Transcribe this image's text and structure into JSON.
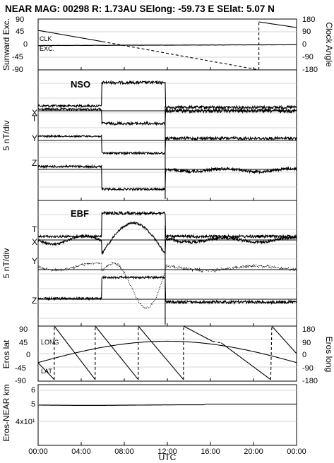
{
  "header": {
    "title": "NEAR MAG: 00298  R: 1.73AU  SElong:  -59.73 E  SElat:     5.07 N"
  },
  "chart_data": [
    {
      "type": "line",
      "panel": "sunward",
      "ylabel": "Sunward Exc.",
      "ylabel_right": "Clock Angle",
      "yticks": [
        "90",
        "45",
        "0",
        "-45",
        "-90"
      ],
      "yticks_right": [
        "180",
        "90",
        "0",
        "-90",
        "-180"
      ],
      "ylim": [
        -90,
        90
      ],
      "ylim_right": [
        -180,
        180
      ],
      "series": [
        {
          "name": "CLK",
          "axis": "right",
          "segments": [
            {
              "x": [
                0,
                12.6
              ],
              "y": [
                100,
                -180
              ],
              "style": "solid"
            },
            {
              "x": [
                12.6,
                20.5
              ],
              "y": [
                -180,
                -180
              ],
              "style": "none"
            },
            {
              "x": [
                0,
                6.0,
                8.8,
                15.5,
                16.2,
                20.5
              ],
              "y": [
                100,
                20,
                -12,
                -110,
                -125,
                -180
              ],
              "style": "mixed"
            },
            {
              "x": [
                20.5,
                20.5
              ],
              "y": [
                -180,
                160
              ],
              "style": "solid"
            },
            {
              "x": [
                20.5,
                24
              ],
              "y": [
                160,
                120
              ],
              "style": "solid"
            }
          ]
        },
        {
          "name": "EXC.",
          "axis": "left",
          "segments": [
            {
              "x": [
                0,
                24
              ],
              "y": [
                -5,
                2
              ],
              "style": "solid"
            }
          ]
        }
      ],
      "annotations": [
        "CLK",
        "EXC."
      ]
    },
    {
      "type": "line",
      "panel": "NSO",
      "title": "NSO",
      "ylabel": "5 nT/div",
      "traces": [
        "T",
        "X",
        "Y",
        "Z"
      ],
      "events": {
        "jump_start": 5.9,
        "jump_end": 11.8
      }
    },
    {
      "type": "line",
      "panel": "EBF",
      "title": "EBF",
      "ylabel": "5 nT/div",
      "traces": [
        "T",
        "X",
        "Y",
        "Z"
      ],
      "events": {
        "jump_start": 5.9,
        "jump_end": 11.8
      }
    },
    {
      "type": "line",
      "panel": "eros",
      "ylabel": "Eros lat",
      "ylabel_right": "Eros long",
      "yticks": [
        "90",
        "45",
        "0",
        "-45",
        "-90"
      ],
      "yticks_right": [
        "180",
        "90",
        "0",
        "-90",
        "-180"
      ],
      "ylim": [
        -90,
        90
      ],
      "ylim_right": [
        -180,
        180
      ],
      "annotations": [
        "LONG",
        "LAT"
      ],
      "series": [
        {
          "name": "LAT",
          "axis": "left",
          "x": [
            0,
            3,
            6,
            9,
            11.7,
            14,
            16,
            17,
            20,
            23.5
          ],
          "y": [
            -55,
            -32,
            3,
            35,
            45,
            35,
            18,
            12,
            -20,
            -45
          ]
        },
        {
          "name": "LONG",
          "axis": "right",
          "x": [
            0,
            1.5,
            3.9,
            5.3,
            8.1,
            9.3,
            12.1,
            13.5,
            15.2,
            16.2,
            21.6,
            21.7,
            24
          ],
          "y": [
            -60,
            80,
            -170,
            180,
            -170,
            180,
            -170,
            180,
            20,
            80,
            -170,
            180,
            0
          ]
        }
      ]
    },
    {
      "type": "line",
      "panel": "distance",
      "ylabel": "Eros-NEAR km",
      "yscale": "log",
      "yticks": [
        "6",
        "5",
        "4x10¹"
      ],
      "series": [
        {
          "name": "distance",
          "x": [
            0,
            6,
            12,
            15.5,
            16.5,
            24
          ],
          "y": [
            50,
            49.6,
            50,
            50.3,
            50.6,
            50.5
          ]
        }
      ]
    }
  ],
  "xaxis": {
    "label": "UTC",
    "ticks": [
      "00:00",
      "04:00",
      "08:00",
      "12:00",
      "16:00",
      "20:00",
      "00:00"
    ],
    "range_hours": [
      0,
      24
    ]
  },
  "labels": {
    "sun_ylabel": "Sunward Exc.",
    "sun_ylabel_right": "Clock Angle",
    "sun_clk": "CLK",
    "sun_exc": "EXC.",
    "nso_title": "NSO",
    "ebf_title": "EBF",
    "div_ylabel": "5 nT/div",
    "t": "T",
    "x": "X",
    "y": "Y",
    "z": "Z",
    "eros_ylabel": "Eros lat",
    "eros_ylabel_right": "Eros long",
    "eros_long": "LONG",
    "eros_lat": "LAT",
    "dist_ylabel": "Eros-NEAR km"
  }
}
